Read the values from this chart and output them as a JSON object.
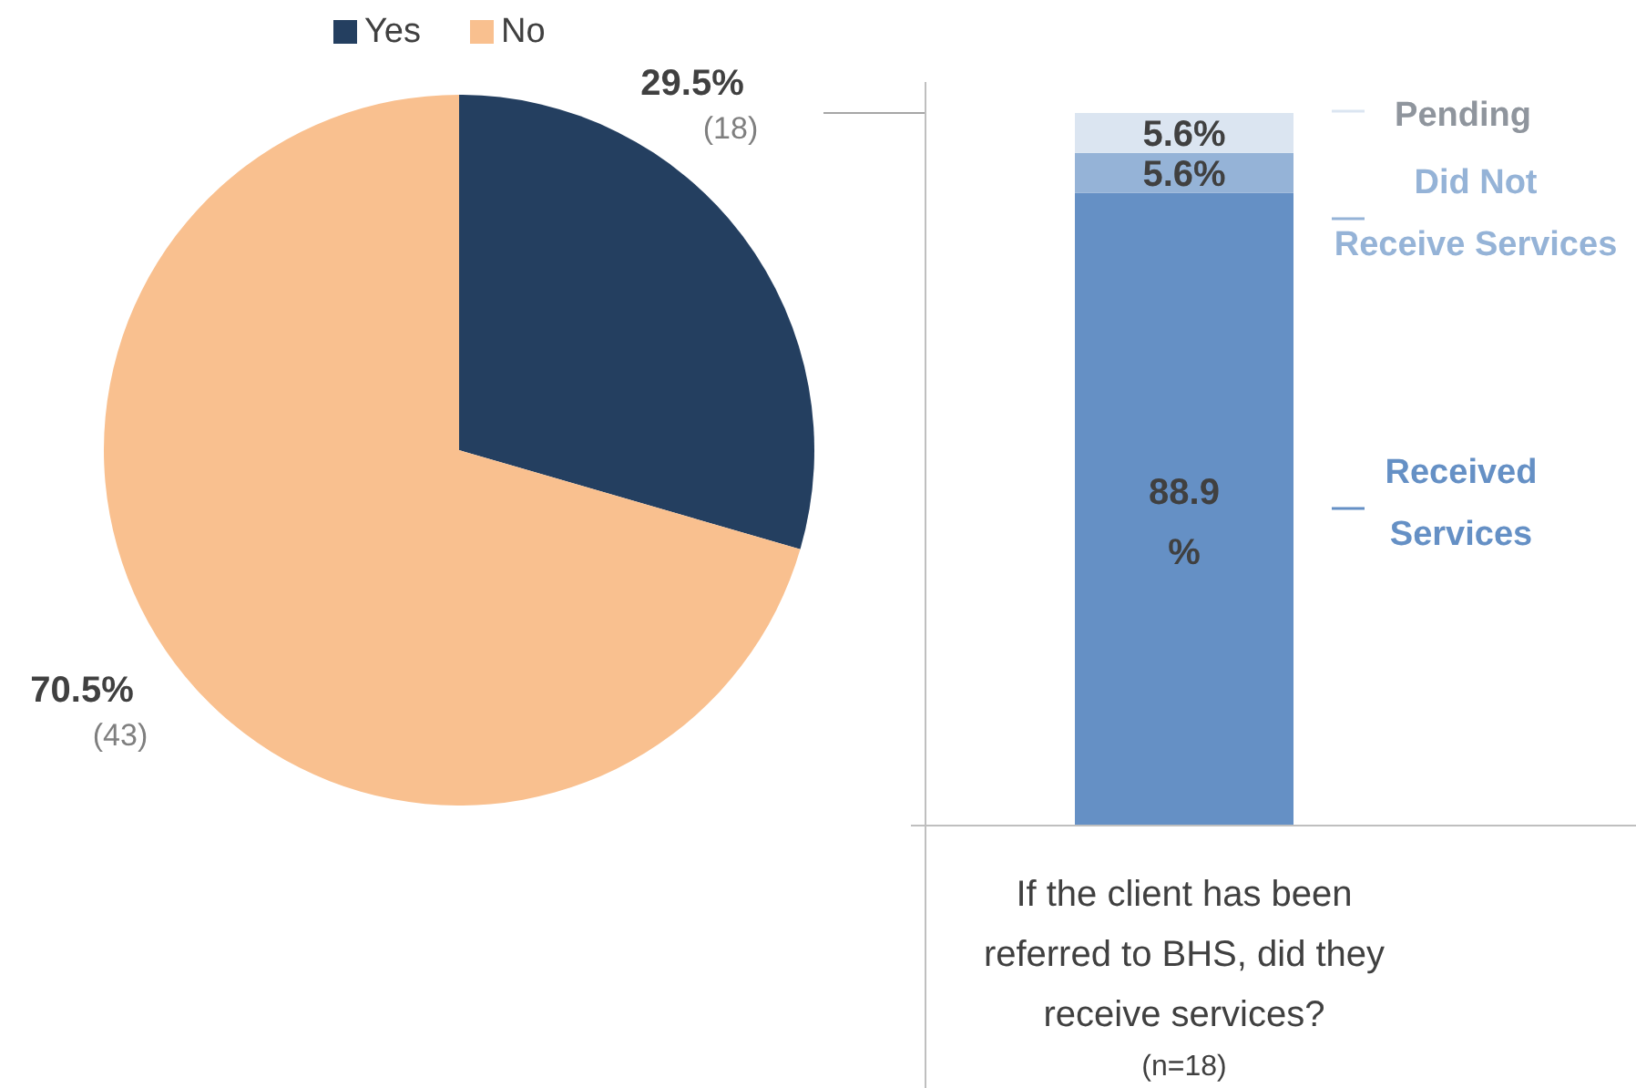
{
  "chart_data": [
    {
      "type": "pie",
      "categories": [
        "Yes",
        "No"
      ],
      "values": [
        29.5,
        70.5
      ],
      "colors": [
        "#243f60",
        "#f9c08f"
      ],
      "value_labels": [
        "29.5%",
        "70.5%"
      ],
      "annotations": [
        "(18)",
        "(43)"
      ],
      "legend": "top"
    },
    {
      "type": "bar",
      "stacked": true,
      "categories": [
        null
      ],
      "series": [
        {
          "name": "Received Services",
          "color": "#6590c5",
          "values": [
            88.9
          ],
          "value_labels": [
            "88.9%"
          ]
        },
        {
          "name": "Did Not Receive Services",
          "color": "#95b3d7",
          "values": [
            5.6
          ],
          "value_labels": [
            "5.6%"
          ]
        },
        {
          "name": "Pending",
          "color": "#dbe5f1",
          "values": [
            5.6
          ],
          "value_labels": [
            "5.6%"
          ]
        }
      ],
      "xlabel": "If the client has been referred to BHS, did they receive services?",
      "annotations": [
        "(n=18)"
      ],
      "legend": "right"
    }
  ]
}
